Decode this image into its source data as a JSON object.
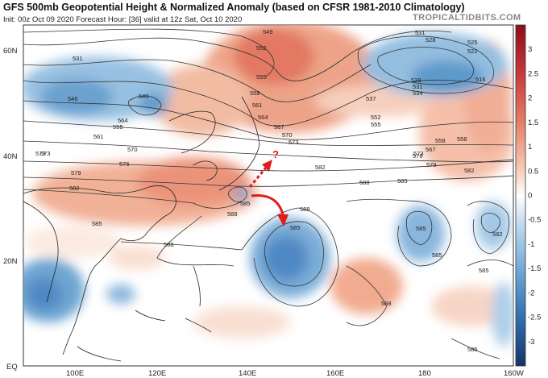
{
  "title": "GFS 500mb Geopotential Height & Normalized Anomaly (based on CFSR 1981-2010 Climatology)",
  "subtitle": "Init: 00z Oct 09 2020   Forecast Hour: [36]   valid at 12z Sat, Oct 10 2020",
  "brand": "TROPICALTIDBITS.COM",
  "lat_labels": [
    "60N",
    "40N",
    "20N",
    "EQ"
  ],
  "lon_labels": [
    "100E",
    "120E",
    "140E",
    "160E",
    "180",
    "160W"
  ],
  "colorbar": {
    "labels": [
      "3",
      "2.5",
      "2",
      "1.5",
      "1",
      "0.5",
      "0",
      "-0.5",
      "-1",
      "-1.5",
      "-2",
      "-2.5",
      "-3"
    ],
    "min": -3.5,
    "max": 3.5
  },
  "contour_labels": [
    "549",
    "552",
    "555",
    "558",
    "561",
    "564",
    "567",
    "570",
    "573",
    "576",
    "579",
    "582",
    "585",
    "588",
    "531",
    "534",
    "537",
    "540",
    "546",
    "528",
    "525",
    "522",
    "519",
    "516"
  ],
  "annotations": {
    "question_mark": "?"
  },
  "colors": {
    "positive": "#e8826a",
    "negative": "#4c8fc7",
    "arrow": "#e21b1b"
  }
}
